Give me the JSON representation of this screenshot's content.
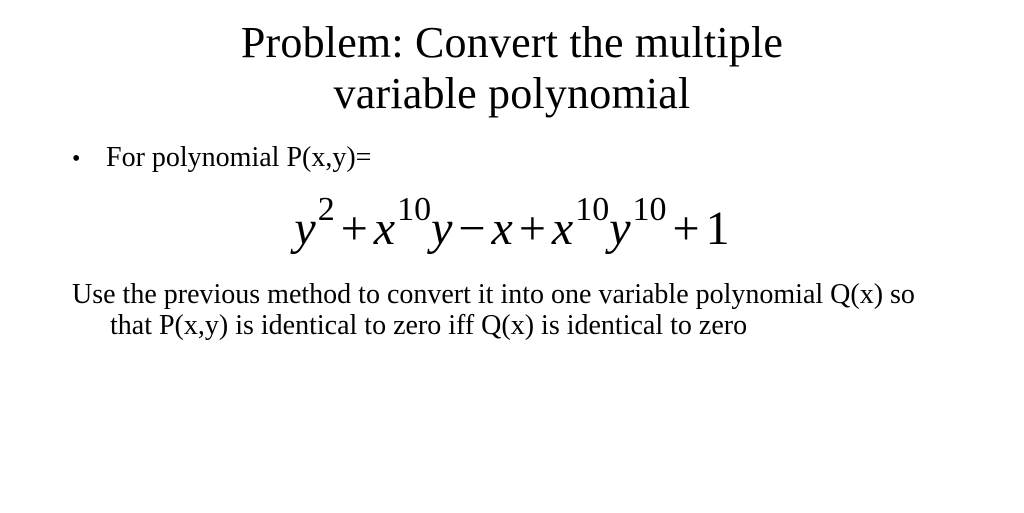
{
  "title_line1": "Problem: Convert the multiple",
  "title_line2": "variable polynomial",
  "bullet1": "For polynomial P(x,y)=",
  "equation": {
    "terms": [
      {
        "var": "y",
        "sup": "2"
      },
      {
        "op": "+"
      },
      {
        "var": "x",
        "sup": "10"
      },
      {
        "var": "y"
      },
      {
        "op": "−"
      },
      {
        "var": "x"
      },
      {
        "op": "+"
      },
      {
        "var": "x",
        "sup": "10"
      },
      {
        "var": "y",
        "sup": "10"
      },
      {
        "op": "+"
      },
      {
        "num": "1"
      }
    ],
    "title_fontsize": 44,
    "equation_fontsize": 48,
    "body_fontsize": 28,
    "text_color": "#000000",
    "background_color": "#ffffff"
  },
  "para_line1": "Use the previous method to convert it into one variable",
  "para_line2": "polynomial Q(x) so that P(x,y) is identical to zero iff Q(x) is",
  "para_line3": "identical to zero"
}
